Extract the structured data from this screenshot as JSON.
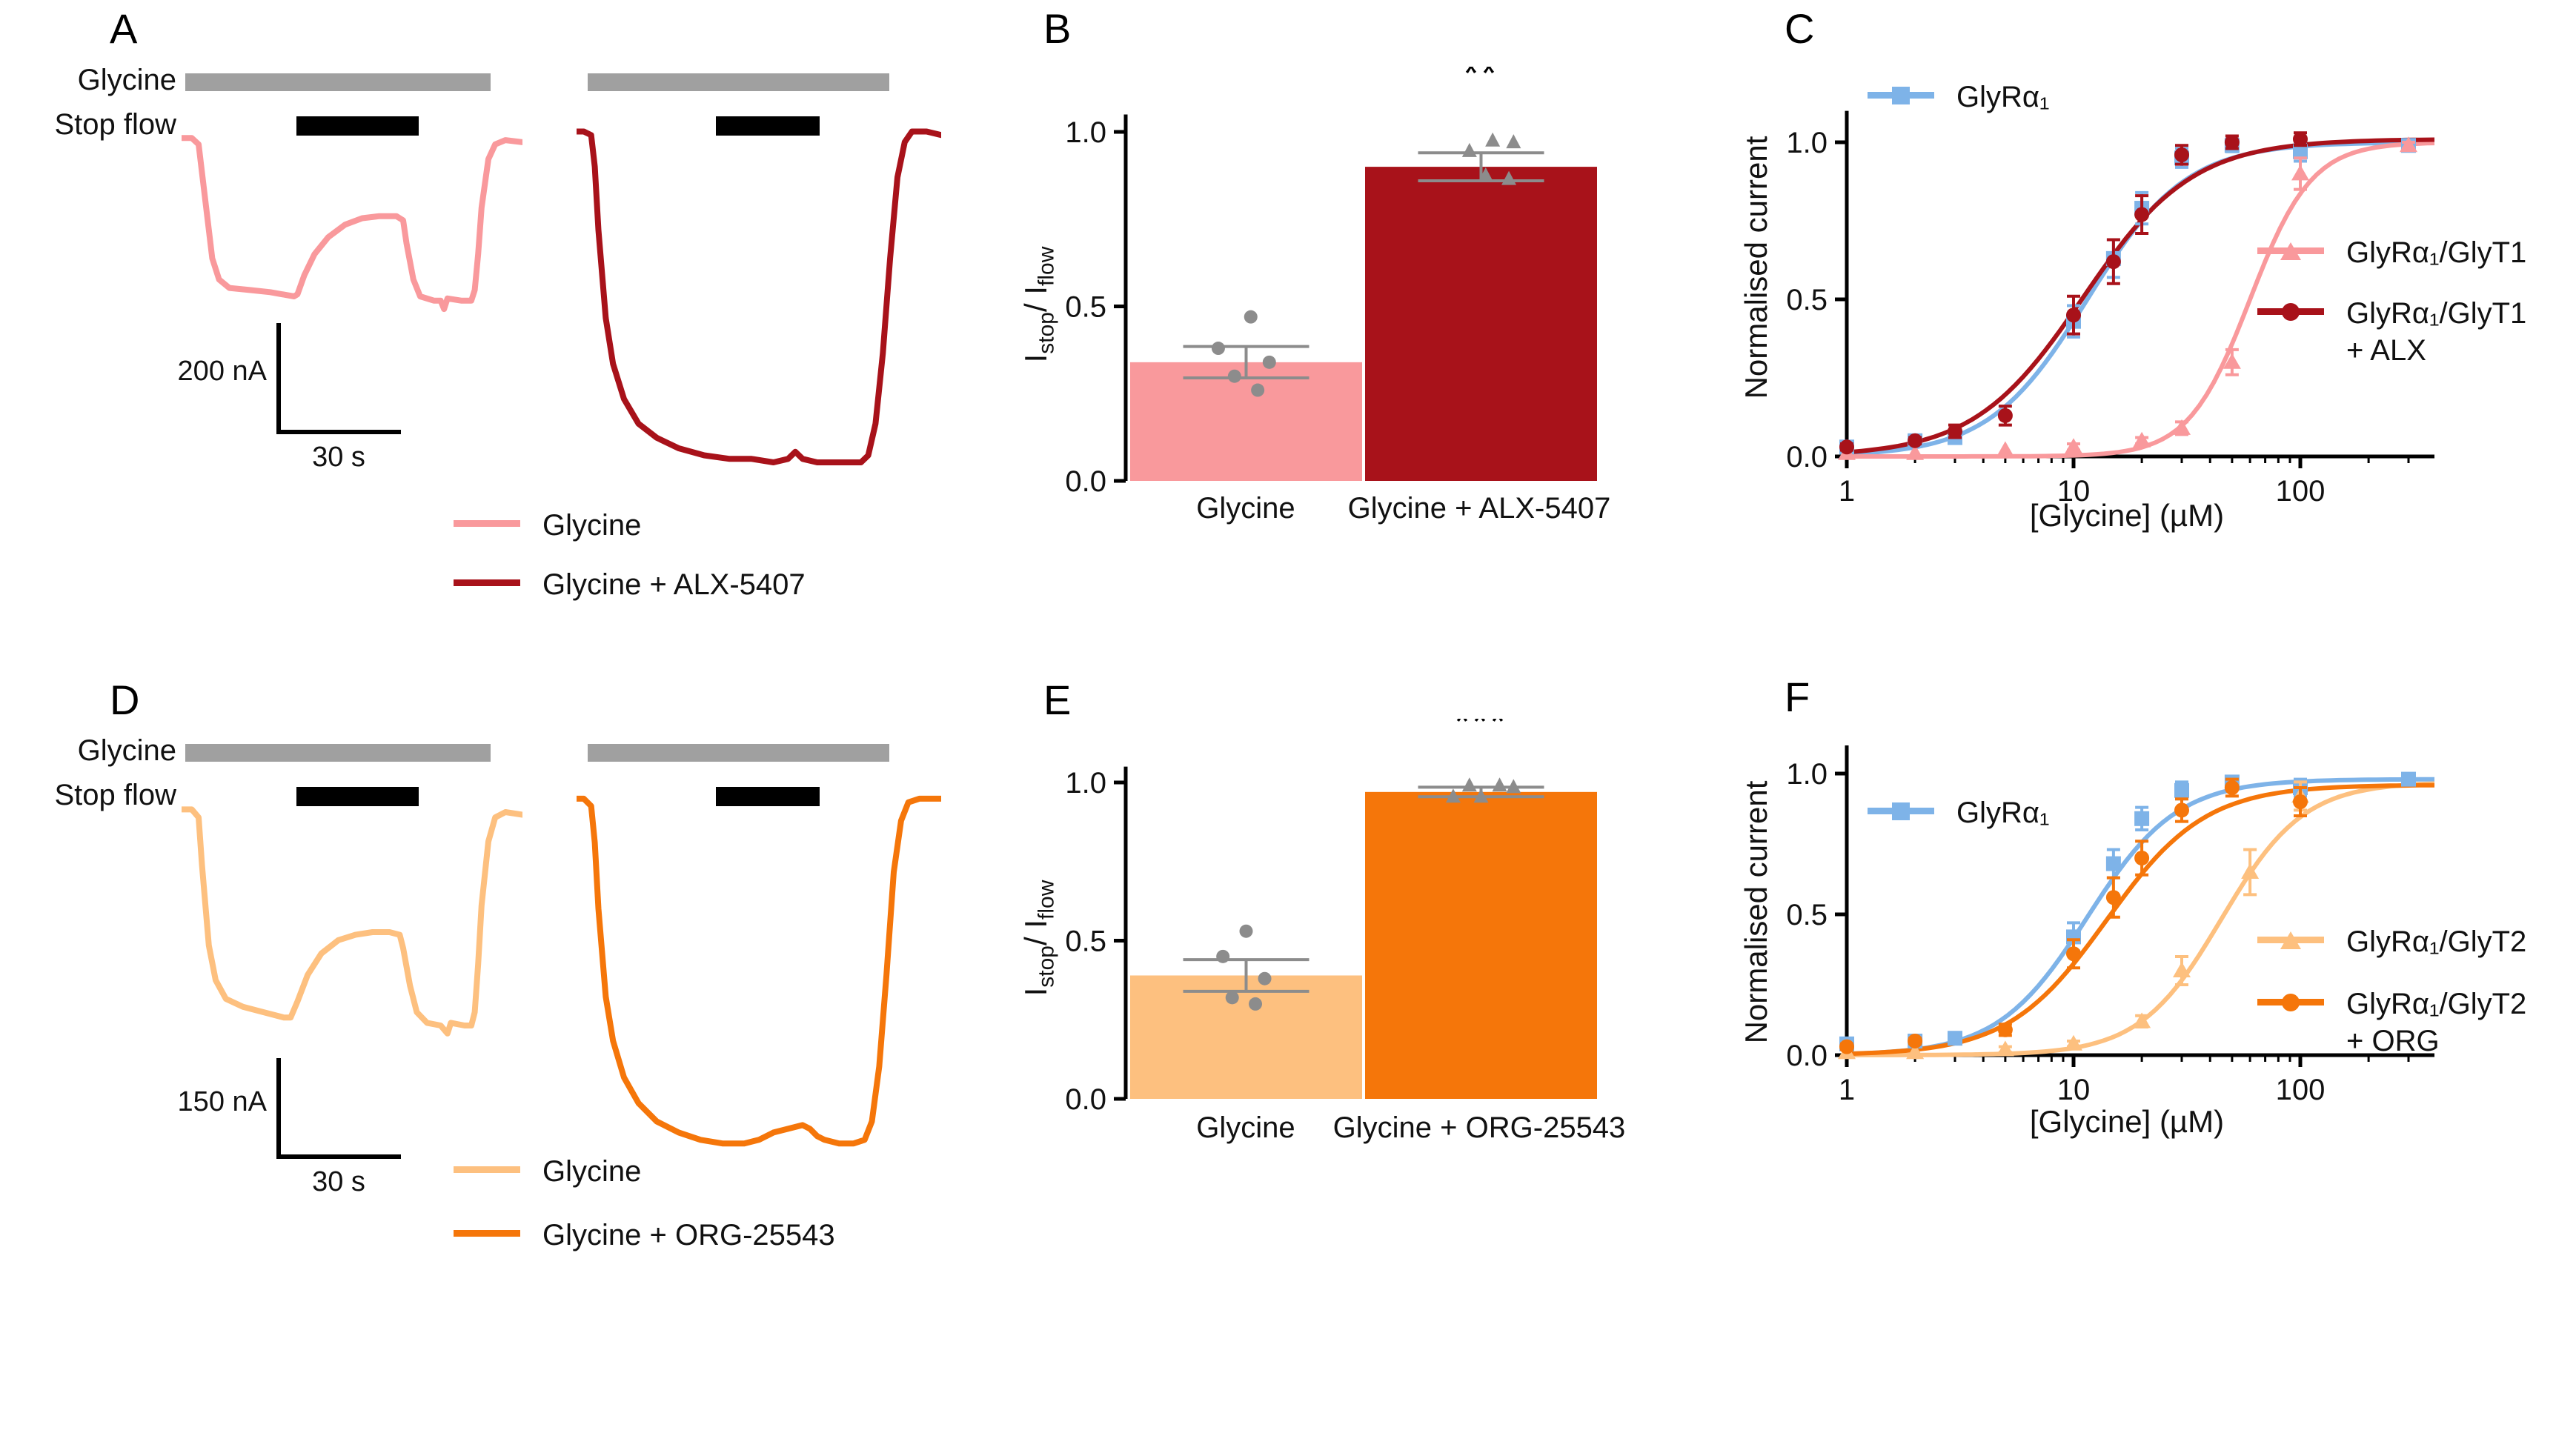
{
  "colors": {
    "pink": "#f9999c",
    "dark_red": "#a8121a",
    "light_orange": "#fdc07f",
    "orange": "#f5760a",
    "blue": "#7eb3e8",
    "gray_bar": "#a0a0a0",
    "black_bar": "#000000",
    "scatter_gray": "#8c8c8c"
  },
  "panel_a": {
    "letter": "A",
    "glycine_label": "Glycine",
    "stop_flow_label": "Stop flow",
    "scale_current": "200 nA",
    "scale_time": "30 s",
    "legend": [
      {
        "label": "Glycine"
      },
      {
        "label": "Glycine + ALX-5407"
      }
    ]
  },
  "panel_b": {
    "letter": "B",
    "ylabel_parts": {
      "i1": "I",
      "sub1": "stop",
      "mid": "/ I",
      "sub2": "flow"
    }
  },
  "panel_c": {
    "letter": "C",
    "legend_bottom_line1": "GlyRα₁/GlyT1",
    "legend_bottom_line2": "+ ALX"
  },
  "panel_d": {
    "letter": "D",
    "glycine_label": "Glycine",
    "stop_flow_label": "Stop flow",
    "scale_current": "150 nA",
    "scale_time": "30 s",
    "legend": [
      {
        "label": "Glycine"
      },
      {
        "label": "Glycine + ORG-25543"
      }
    ]
  },
  "panel_e": {
    "letter": "E",
    "ylabel_parts": {
      "i1": "I",
      "sub1": "stop",
      "mid": "/ I",
      "sub2": "flow"
    }
  },
  "panel_f": {
    "letter": "F",
    "legend_bottom_line1": "GlyRα₁/GlyT2",
    "legend_bottom_line2": "+ ORG"
  },
  "chart_data": [
    {
      "id": "trace-a-glycine",
      "type": "line",
      "panel": "A",
      "series": [
        {
          "name": "Glycine",
          "color": "#f9999c",
          "points": [
            [
              0,
              5
            ],
            [
              3,
              5
            ],
            [
              5,
              8
            ],
            [
              7,
              35
            ],
            [
              9,
              62
            ],
            [
              11,
              72
            ],
            [
              14,
              76
            ],
            [
              20,
              77
            ],
            [
              26,
              78
            ],
            [
              33,
              80
            ],
            [
              34,
              79
            ],
            [
              36,
              70
            ],
            [
              39,
              60
            ],
            [
              43,
              52
            ],
            [
              48,
              46
            ],
            [
              53,
              43
            ],
            [
              58,
              42
            ],
            [
              63,
              42
            ],
            [
              65,
              44
            ],
            [
              66,
              55
            ],
            [
              68,
              72
            ],
            [
              70,
              80
            ],
            [
              74,
              82
            ],
            [
              76,
              82
            ],
            [
              77,
              86
            ],
            [
              78,
              81
            ],
            [
              82,
              82
            ],
            [
              85,
              82
            ],
            [
              86,
              77
            ],
            [
              87,
              60
            ],
            [
              88,
              38
            ],
            [
              90,
              15
            ],
            [
              92,
              8
            ],
            [
              95,
              6
            ],
            [
              100,
              7
            ]
          ]
        }
      ]
    },
    {
      "id": "trace-a-alx",
      "type": "line",
      "panel": "A",
      "series": [
        {
          "name": "Glycine + ALX-5407",
          "color": "#a8121a",
          "points": [
            [
              0,
              2
            ],
            [
              2,
              2
            ],
            [
              4,
              3
            ],
            [
              5,
              12
            ],
            [
              6,
              30
            ],
            [
              8,
              55
            ],
            [
              10,
              68
            ],
            [
              13,
              78
            ],
            [
              17,
              85
            ],
            [
              22,
              89
            ],
            [
              28,
              92
            ],
            [
              35,
              94
            ],
            [
              42,
              95
            ],
            [
              48,
              95
            ],
            [
              54,
              96
            ],
            [
              58,
              95
            ],
            [
              60,
              93
            ],
            [
              62,
              95
            ],
            [
              66,
              96
            ],
            [
              70,
              96
            ],
            [
              74,
              96
            ],
            [
              78,
              96
            ],
            [
              80,
              94
            ],
            [
              82,
              85
            ],
            [
              84,
              65
            ],
            [
              86,
              38
            ],
            [
              88,
              15
            ],
            [
              90,
              5
            ],
            [
              92,
              2
            ],
            [
              96,
              2
            ],
            [
              100,
              3
            ]
          ]
        }
      ]
    },
    {
      "id": "trace-d-glycine",
      "type": "line",
      "panel": "D",
      "series": [
        {
          "name": "Glycine",
          "color": "#fdc07f",
          "points": [
            [
              0,
              4
            ],
            [
              3,
              4
            ],
            [
              5,
              7
            ],
            [
              6,
              25
            ],
            [
              8,
              55
            ],
            [
              10,
              68
            ],
            [
              13,
              75
            ],
            [
              18,
              78
            ],
            [
              24,
              80
            ],
            [
              30,
              82
            ],
            [
              32,
              82
            ],
            [
              34,
              76
            ],
            [
              37,
              66
            ],
            [
              41,
              58
            ],
            [
              46,
              53
            ],
            [
              51,
              51
            ],
            [
              56,
              50
            ],
            [
              61,
              50
            ],
            [
              64,
              51
            ],
            [
              65,
              56
            ],
            [
              67,
              70
            ],
            [
              69,
              80
            ],
            [
              72,
              84
            ],
            [
              76,
              85
            ],
            [
              78,
              88
            ],
            [
              79,
              84
            ],
            [
              83,
              85
            ],
            [
              85,
              85
            ],
            [
              86,
              80
            ],
            [
              87,
              62
            ],
            [
              88,
              40
            ],
            [
              90,
              16
            ],
            [
              92,
              7
            ],
            [
              95,
              5
            ],
            [
              100,
              6
            ]
          ]
        }
      ]
    },
    {
      "id": "trace-d-org",
      "type": "line",
      "panel": "D",
      "series": [
        {
          "name": "Glycine + ORG-25543",
          "color": "#f5760a",
          "points": [
            [
              0,
              2
            ],
            [
              2,
              2
            ],
            [
              4,
              4
            ],
            [
              5,
              14
            ],
            [
              6,
              32
            ],
            [
              8,
              56
            ],
            [
              10,
              68
            ],
            [
              13,
              78
            ],
            [
              17,
              85
            ],
            [
              22,
              90
            ],
            [
              28,
              93
            ],
            [
              34,
              95
            ],
            [
              40,
              96
            ],
            [
              46,
              96
            ],
            [
              50,
              95
            ],
            [
              54,
              93
            ],
            [
              58,
              92
            ],
            [
              62,
              91
            ],
            [
              64,
              92
            ],
            [
              66,
              94
            ],
            [
              68,
              95
            ],
            [
              72,
              96
            ],
            [
              76,
              96
            ],
            [
              79,
              95
            ],
            [
              81,
              90
            ],
            [
              83,
              75
            ],
            [
              85,
              50
            ],
            [
              87,
              22
            ],
            [
              89,
              8
            ],
            [
              91,
              3
            ],
            [
              94,
              2
            ],
            [
              100,
              2
            ]
          ]
        }
      ]
    },
    {
      "id": "bar-alx",
      "type": "bar",
      "ylabel": "Istop/Iflow",
      "categories": [
        "Glycine",
        "Glycine + ALX-5407"
      ],
      "values": [
        0.34,
        0.9
      ],
      "errors": [
        0.045,
        0.04
      ],
      "bar_colors": [
        "#f9999c",
        "#a8121a"
      ],
      "point_color": "#8c8c8c",
      "point_markers": [
        "circle",
        "triangle"
      ],
      "points": [
        [
          [
            0.02,
            0.47
          ],
          [
            -0.12,
            0.38
          ],
          [
            0.1,
            0.34
          ],
          [
            -0.05,
            0.3
          ],
          [
            0.05,
            0.26
          ]
        ],
        [
          [
            0.05,
            0.975
          ],
          [
            0.14,
            0.97
          ],
          [
            -0.05,
            0.945
          ],
          [
            0.02,
            0.875
          ],
          [
            0.12,
            0.865
          ]
        ]
      ],
      "significance": {
        "text": "**",
        "bar": 1,
        "y": 1.13
      },
      "yticks": [
        0,
        0.5,
        1
      ],
      "ylim": [
        0,
        1.1
      ],
      "axis_top": 1.05
    },
    {
      "id": "bar-org",
      "type": "bar",
      "ylabel": "Istop/Iflow",
      "categories": [
        "Glycine",
        "Glycine + ORG-25543"
      ],
      "values": [
        0.39,
        0.97
      ],
      "errors": [
        0.05,
        0.015
      ],
      "bar_colors": [
        "#fdc07f",
        "#f5760a"
      ],
      "point_color": "#8c8c8c",
      "point_markers": [
        "circle",
        "triangle"
      ],
      "points": [
        [
          [
            0.0,
            0.53
          ],
          [
            -0.1,
            0.45
          ],
          [
            0.08,
            0.38
          ],
          [
            -0.06,
            0.32
          ],
          [
            0.04,
            0.3
          ]
        ],
        [
          [
            -0.05,
            0.99
          ],
          [
            0.08,
            0.99
          ],
          [
            0.14,
            0.985
          ],
          [
            -0.12,
            0.955
          ],
          [
            0.0,
            0.955
          ]
        ]
      ],
      "significance": {
        "text": "***",
        "bar": 1,
        "y": 1.15
      },
      "yticks": [
        0,
        0.5,
        1
      ],
      "ylim": [
        0,
        1.1
      ],
      "axis_top": 1.05
    },
    {
      "id": "dose-glyt1",
      "type": "scatter-line",
      "xscale": "log",
      "xlabel": "[Glycine] (µM)",
      "ylabel": "Normalised current",
      "xticks": [
        1,
        10,
        100
      ],
      "yticks": [
        0,
        0.5,
        1
      ],
      "xlim": [
        1,
        390
      ],
      "ylim": [
        0,
        1.1
      ],
      "axis_top": 1.1,
      "series": [
        {
          "name": "GlyRα₁",
          "marker": "square",
          "color": "#7eb3e8",
          "ec50": 11.5,
          "hill": 2.0,
          "top": 1.0,
          "x": [
            1,
            2,
            3,
            10,
            15,
            20,
            30,
            50,
            100,
            300
          ],
          "y": [
            0.03,
            0.05,
            0.06,
            0.43,
            0.63,
            0.79,
            0.95,
            0.99,
            0.97,
            0.99
          ],
          "err": [
            0.01,
            0.01,
            0.01,
            0.05,
            0.06,
            0.05,
            0.03,
            0.02,
            0.03,
            0.01
          ]
        },
        {
          "name": "GlyRα₁/GlyT1",
          "marker": "triangle",
          "color": "#f9999c",
          "ec50": 60,
          "hill": 3.2,
          "top": 1.0,
          "x": [
            1,
            2,
            5,
            10,
            20,
            30,
            50,
            100,
            300
          ],
          "y": [
            0.01,
            0.01,
            0.02,
            0.03,
            0.05,
            0.09,
            0.3,
            0.9,
            0.99
          ],
          "err": [
            0,
            0,
            0,
            0.01,
            0.01,
            0.02,
            0.04,
            0.05,
            0.01
          ]
        },
        {
          "name": "GlyRα₁/GlyT1 + ALX",
          "marker": "circle",
          "color": "#a8121a",
          "ec50": 11,
          "hill": 1.8,
          "top": 1.01,
          "x": [
            1,
            2,
            3,
            5,
            10,
            15,
            20,
            30,
            50,
            100
          ],
          "y": [
            0.03,
            0.05,
            0.08,
            0.13,
            0.45,
            0.62,
            0.77,
            0.96,
            1.0,
            1.01
          ],
          "err": [
            0.01,
            0.01,
            0.02,
            0.03,
            0.06,
            0.07,
            0.06,
            0.03,
            0.02,
            0.02
          ]
        }
      ]
    },
    {
      "id": "dose-glyt2",
      "type": "scatter-line",
      "xscale": "log",
      "xlabel": "[Glycine] (µM)",
      "ylabel": "Normalised current",
      "xticks": [
        1,
        10,
        100
      ],
      "yticks": [
        0,
        0.5,
        1
      ],
      "xlim": [
        1,
        390
      ],
      "ylim": [
        0,
        1.1
      ],
      "axis_top": 1.1,
      "series": [
        {
          "name": "GlyRα₁",
          "marker": "square",
          "color": "#7eb3e8",
          "ec50": 11.5,
          "hill": 2.2,
          "top": 0.98,
          "x": [
            1,
            2,
            3,
            10,
            15,
            20,
            30,
            50,
            100,
            300
          ],
          "y": [
            0.04,
            0.05,
            0.06,
            0.42,
            0.68,
            0.84,
            0.94,
            0.97,
            0.95,
            0.98
          ],
          "err": [
            0.01,
            0.01,
            0.01,
            0.05,
            0.05,
            0.04,
            0.03,
            0.02,
            0.03,
            0.01
          ]
        },
        {
          "name": "GlyRα₁/GlyT2",
          "marker": "triangle",
          "color": "#fdc07f",
          "ec50": 45,
          "hill": 2.4,
          "top": 0.97,
          "x": [
            1,
            2,
            5,
            10,
            20,
            30,
            60,
            100
          ],
          "y": [
            0.01,
            0.01,
            0.02,
            0.04,
            0.12,
            0.3,
            0.65,
            0.92
          ],
          "err": [
            0,
            0,
            0.01,
            0.01,
            0.02,
            0.05,
            0.08,
            0.05
          ]
        },
        {
          "name": "GlyRα₁/GlyT2 + ORG",
          "marker": "circle",
          "color": "#f5760a",
          "ec50": 14,
          "hill": 2.0,
          "top": 0.96,
          "x": [
            1,
            2,
            5,
            10,
            15,
            20,
            30,
            50,
            100
          ],
          "y": [
            0.03,
            0.05,
            0.09,
            0.36,
            0.56,
            0.7,
            0.87,
            0.95,
            0.9
          ],
          "err": [
            0.01,
            0.01,
            0.02,
            0.05,
            0.07,
            0.06,
            0.04,
            0.03,
            0.05
          ]
        }
      ]
    }
  ]
}
